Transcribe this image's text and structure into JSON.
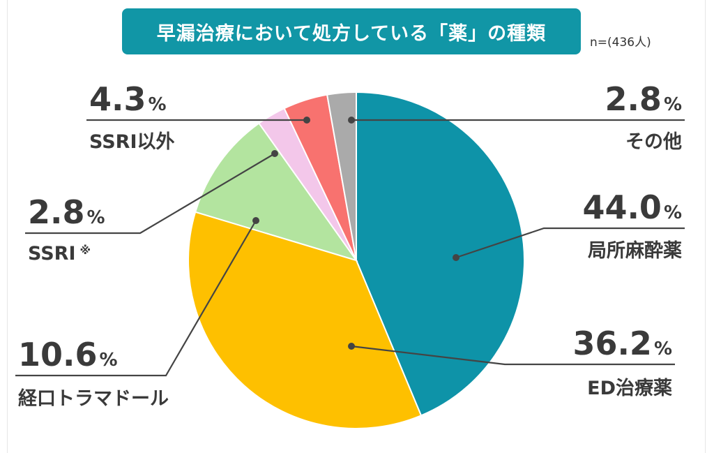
{
  "header": {
    "title": "早漏治療において処方している「薬」の種類",
    "sample_size": "n=(436人)"
  },
  "chart_data": {
    "type": "pie",
    "start": "12 o'clock, clockwise",
    "slices": [
      {
        "label": "局所麻酔薬",
        "value": 44.0,
        "display": "44.0",
        "color": "#0e93a8",
        "highlight": false
      },
      {
        "label": "ED治療薬",
        "value": 36.2,
        "display": "36.2",
        "color": "#fec000",
        "highlight": true
      },
      {
        "label": "経口トラマドール",
        "value": 10.6,
        "display": "10.6",
        "color": "#b3e49f",
        "highlight": false
      },
      {
        "label": "SSRI",
        "note": "※",
        "value": 2.8,
        "display": "2.8",
        "color": "#f3c7ea",
        "highlight": false
      },
      {
        "label": "SSRI以外",
        "value": 4.3,
        "display": "4.3",
        "color": "#f8726f",
        "highlight": false
      },
      {
        "label": "その他",
        "value": 2.8,
        "display": "2.8",
        "color": "#aaaaaa",
        "highlight": false
      }
    ],
    "unit": "%",
    "highlight_color": "#ee1c1c",
    "legend": "none"
  }
}
